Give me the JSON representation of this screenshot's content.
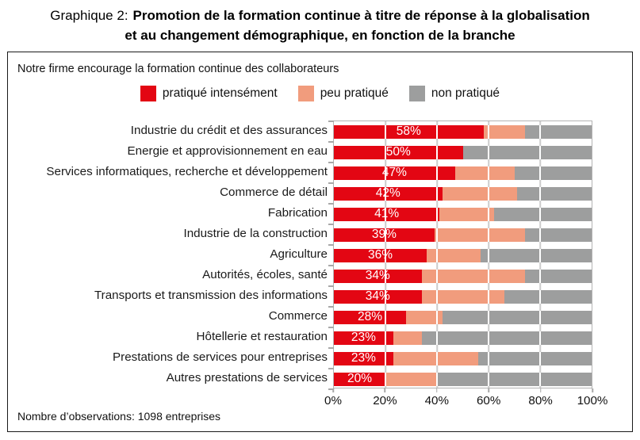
{
  "title": {
    "prefix": "Graphique 2:",
    "line1": "Promotion de la formation continue à titre de réponse à la globalisation",
    "line2": "et au changement démographique, en fonction de la branche"
  },
  "panel": {
    "subtitle": "Notre firme encourage la formation continue des collaborateurs",
    "footer": "Nombre d’observations: 1098 entreprises"
  },
  "colors": {
    "intense": "#e30613",
    "peu": "#f19c7d",
    "non": "#9d9e9e",
    "gridline": "#cccccc",
    "axis": "#a8a8a8"
  },
  "chart_data": {
    "type": "bar",
    "orientation": "horizontal",
    "stacked": true,
    "title": "Notre firme encourage la formation continue des collaborateurs",
    "categories": [
      "Industrie du crédit et des assurances",
      "Energie et approvisionnement en eau",
      "Services informatiques, recherche et développement",
      "Commerce de détail",
      "Fabrication",
      "Industrie de la construction",
      "Agriculture",
      "Autorités, écoles, santé",
      "Transports et transmission des informations",
      "Commerce",
      "Hôtellerie et restauration",
      "Prestations de services pour entreprises",
      "Autres prestations de services"
    ],
    "series": [
      {
        "name": "pratiqué intensément",
        "color": "#e30613",
        "values": [
          58,
          50,
          47,
          42,
          41,
          39,
          36,
          34,
          34,
          28,
          23,
          23,
          20
        ],
        "labeled": true
      },
      {
        "name": "peu pratiqué",
        "color": "#f19c7d",
        "values": [
          16,
          0,
          23,
          29,
          21,
          35,
          21,
          40,
          32,
          14,
          11,
          33,
          20
        ],
        "labeled": false
      },
      {
        "name": "non pratiqué",
        "color": "#9d9e9e",
        "values": [
          26,
          50,
          30,
          29,
          38,
          26,
          43,
          26,
          34,
          58,
          66,
          44,
          60
        ],
        "labeled": false
      }
    ],
    "bar_value_labels": [
      "58%",
      "50%",
      "47%",
      "42%",
      "41%",
      "39%",
      "36%",
      "34%",
      "34%",
      "28%",
      "23%",
      "23%",
      "20%"
    ],
    "x_ticks": [
      "0%",
      "20%",
      "40%",
      "60%",
      "80%",
      "100%"
    ],
    "xlim": [
      0,
      100
    ],
    "xlabel": "",
    "ylabel": "",
    "grid": true,
    "legend_position": "top"
  }
}
